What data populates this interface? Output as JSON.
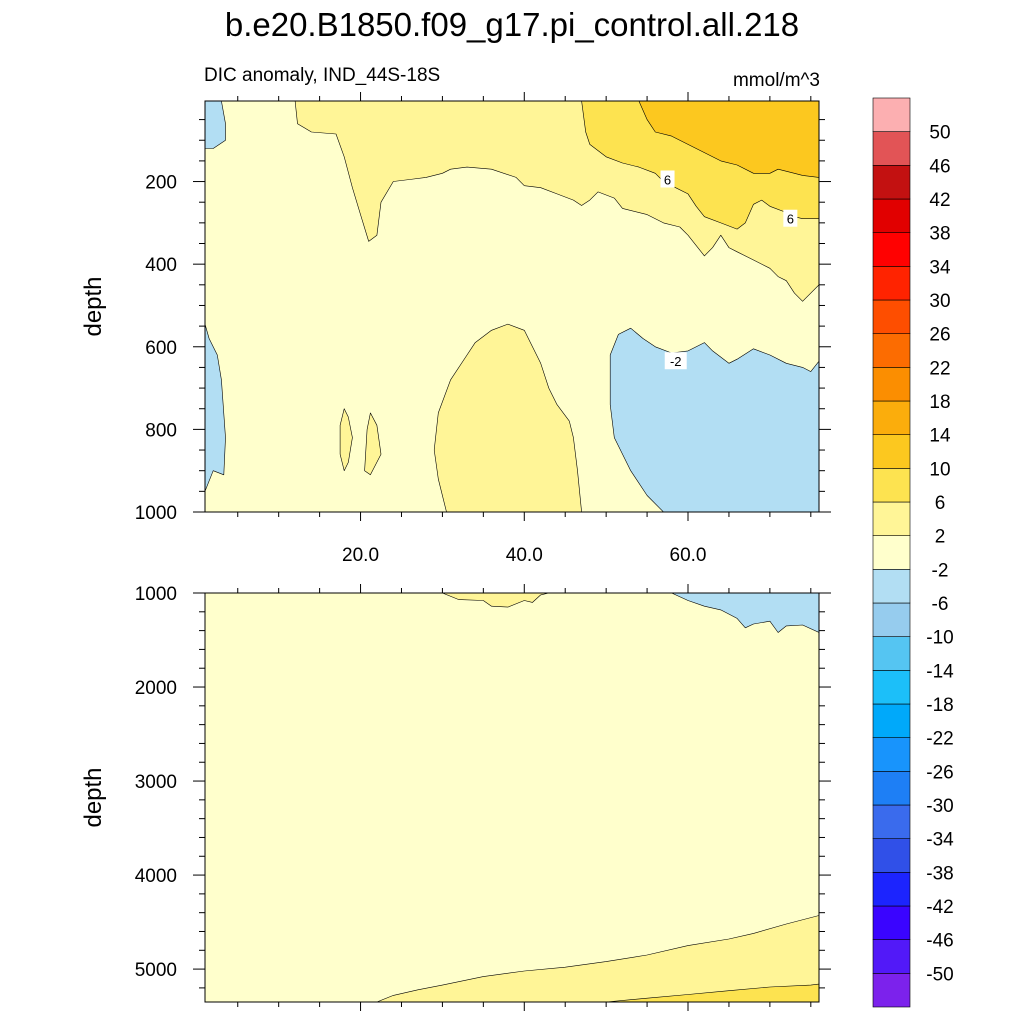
{
  "chart_data": [
    {
      "type": "heatmap",
      "title": "b.e20.B1850.f09_g17.pi_control.all.218",
      "subtitle_left": "DIC anomaly, IND_44S-18S",
      "subtitle_right": "mmol/m^3",
      "ylabel": "depth",
      "xlabel": "",
      "xlim": [
        1,
        76
      ],
      "ylim": [
        1000,
        5
      ],
      "y_reversed": true,
      "xticks": [
        {
          "value": 20,
          "label": "20.0"
        },
        {
          "value": 40,
          "label": "40.0"
        },
        {
          "value": 60,
          "label": "60.0"
        }
      ],
      "yticks": [
        {
          "value": 200,
          "label": "200"
        },
        {
          "value": 400,
          "label": "400"
        },
        {
          "value": 600,
          "label": "600"
        },
        {
          "value": 800,
          "label": "800"
        },
        {
          "value": 1000,
          "label": "1000"
        }
      ],
      "contour_labels": [
        {
          "text": "6",
          "x": 57.5,
          "y": 195
        },
        {
          "text": "6",
          "x": 72.5,
          "y": 290
        },
        {
          "text": "-2",
          "x": 58.5,
          "y": 635
        }
      ],
      "regions": [
        {
          "level": "2 to 6",
          "color": "#fff597",
          "points": [
            [
              12,
              5
            ],
            [
              12.3,
              60
            ],
            [
              14,
              80
            ],
            [
              17,
              85
            ],
            [
              18,
              140
            ],
            [
              19,
              215
            ],
            [
              20,
              280
            ],
            [
              21,
              345
            ],
            [
              22,
              330
            ],
            [
              22.5,
              250
            ],
            [
              24,
              200
            ],
            [
              26,
              195
            ],
            [
              28,
              190
            ],
            [
              30,
              180
            ],
            [
              31,
              170
            ],
            [
              33,
              165
            ],
            [
              36,
              170
            ],
            [
              39,
              190
            ],
            [
              40,
              210
            ],
            [
              42,
              215
            ],
            [
              44,
              230
            ],
            [
              46,
              245
            ],
            [
              47,
              258
            ],
            [
              48,
              245
            ],
            [
              49,
              225
            ],
            [
              51,
              240
            ],
            [
              52,
              265
            ],
            [
              55,
              280
            ],
            [
              57,
              300
            ],
            [
              59,
              310
            ],
            [
              60,
              330
            ],
            [
              61,
              355
            ],
            [
              62,
              380
            ],
            [
              63,
              360
            ],
            [
              64,
              330
            ],
            [
              65,
              360
            ],
            [
              66,
              370
            ],
            [
              68,
              390
            ],
            [
              70,
              410
            ],
            [
              71,
              430
            ],
            [
              72,
              440
            ],
            [
              73,
              470
            ],
            [
              74,
              490
            ],
            [
              75,
              470
            ],
            [
              76,
              450
            ],
            [
              76,
              5
            ]
          ]
        },
        {
          "level": "2 to 6",
          "color": "#fff597",
          "points": [
            [
              30.5,
              1000
            ],
            [
              29.5,
              920
            ],
            [
              29,
              850
            ],
            [
              29.5,
              760
            ],
            [
              31,
              680
            ],
            [
              33,
              620
            ],
            [
              34,
              590
            ],
            [
              36,
              560
            ],
            [
              38,
              545
            ],
            [
              40,
              560
            ],
            [
              41,
              600
            ],
            [
              42,
              640
            ],
            [
              43,
              700
            ],
            [
              44,
              740
            ],
            [
              45.5,
              780
            ],
            [
              46,
              820
            ],
            [
              46.5,
              900
            ],
            [
              47,
              1000
            ]
          ]
        },
        {
          "level": "2 to 6",
          "color": "#fff597",
          "points": [
            [
              17.5,
              790
            ],
            [
              18,
              750
            ],
            [
              18.5,
              770
            ],
            [
              19,
              820
            ],
            [
              18.5,
              880
            ],
            [
              18,
              900
            ],
            [
              17.5,
              860
            ]
          ]
        },
        {
          "level": "2 to 6",
          "color": "#fff597",
          "points": [
            [
              20.5,
              900
            ],
            [
              20.8,
              800
            ],
            [
              21.2,
              760
            ],
            [
              22,
              790
            ],
            [
              22.5,
              860
            ],
            [
              21.2,
              910
            ]
          ]
        },
        {
          "level": "6 to 10",
          "color": "#fde350",
          "points": [
            [
              47,
              5
            ],
            [
              47.5,
              80
            ],
            [
              48,
              110
            ],
            [
              50,
              140
            ],
            [
              52,
              155
            ],
            [
              54,
              165
            ],
            [
              56,
              180
            ],
            [
              57,
              200
            ],
            [
              58,
              210
            ],
            [
              60,
              230
            ],
            [
              61,
              260
            ],
            [
              62,
              285
            ],
            [
              64,
              300
            ],
            [
              66,
              315
            ],
            [
              67,
              300
            ],
            [
              68,
              255
            ],
            [
              69,
              245
            ],
            [
              70,
              260
            ],
            [
              72,
              275
            ],
            [
              73,
              285
            ],
            [
              74,
              290
            ],
            [
              76,
              290
            ],
            [
              76,
              5
            ]
          ]
        },
        {
          "level": "10 to 14",
          "color": "#fcc81f",
          "points": [
            [
              54,
              5
            ],
            [
              55,
              50
            ],
            [
              56,
              80
            ],
            [
              58,
              90
            ],
            [
              60,
              110
            ],
            [
              62,
              130
            ],
            [
              64,
              150
            ],
            [
              66,
              160
            ],
            [
              68,
              180
            ],
            [
              70,
              180
            ],
            [
              71,
              170
            ],
            [
              73,
              180
            ],
            [
              74,
              185
            ],
            [
              76,
              190
            ],
            [
              76,
              5
            ]
          ]
        },
        {
          "level": "-6 to -2",
          "color": "#b2def3",
          "points": [
            [
              1,
              5
            ],
            [
              3,
              5
            ],
            [
              3.5,
              60
            ],
            [
              3.5,
              100
            ],
            [
              2,
              120
            ],
            [
              1,
              120
            ]
          ]
        },
        {
          "level": "-6 to -2",
          "color": "#b2def3",
          "points": [
            [
              1,
              545
            ],
            [
              1.5,
              580
            ],
            [
              2.5,
              620
            ],
            [
              3,
              680
            ],
            [
              3.5,
              820
            ],
            [
              3.3,
              910
            ],
            [
              2,
              900
            ],
            [
              1,
              950
            ]
          ]
        },
        {
          "level": "-6 to -2",
          "color": "#b2def3",
          "points": [
            [
              57,
              1000
            ],
            [
              55,
              960
            ],
            [
              53,
              900
            ],
            [
              51,
              820
            ],
            [
              50.5,
              740
            ],
            [
              50.5,
              620
            ],
            [
              51.5,
              570
            ],
            [
              53,
              555
            ],
            [
              54.5,
              580
            ],
            [
              56,
              600
            ],
            [
              58,
              615
            ],
            [
              60,
              610
            ],
            [
              62,
              590
            ],
            [
              63,
              610
            ],
            [
              65,
              640
            ],
            [
              66,
              630
            ],
            [
              68,
              605
            ],
            [
              70,
              620
            ],
            [
              72,
              640
            ],
            [
              74,
              650
            ],
            [
              75,
              660
            ],
            [
              76,
              635
            ],
            [
              76,
              1000
            ]
          ]
        }
      ]
    },
    {
      "type": "heatmap",
      "ylabel": "depth",
      "xlim": [
        1,
        76
      ],
      "ylim": [
        5350,
        1000
      ],
      "y_reversed": true,
      "yticks": [
        {
          "value": 1000,
          "label": "1000"
        },
        {
          "value": 2000,
          "label": "2000"
        },
        {
          "value": 3000,
          "label": "3000"
        },
        {
          "value": 4000,
          "label": "4000"
        },
        {
          "value": 5000,
          "label": "5000"
        }
      ],
      "regions": [
        {
          "level": "2 to 6",
          "color": "#fff597",
          "points": [
            [
              30,
              1000
            ],
            [
              32,
              1070
            ],
            [
              35,
              1080
            ],
            [
              36,
              1140
            ],
            [
              38,
              1150
            ],
            [
              40,
              1080
            ],
            [
              41,
              1100
            ],
            [
              42,
              1020
            ],
            [
              43,
              1000
            ]
          ]
        },
        {
          "level": "2 to 6",
          "color": "#fff597",
          "points": [
            [
              22,
              5350
            ],
            [
              24,
              5280
            ],
            [
              27,
              5220
            ],
            [
              30,
              5170
            ],
            [
              35,
              5080
            ],
            [
              40,
              5020
            ],
            [
              45,
              4980
            ],
            [
              50,
              4920
            ],
            [
              55,
              4850
            ],
            [
              60,
              4750
            ],
            [
              65,
              4680
            ],
            [
              68,
              4620
            ],
            [
              72,
              4520
            ],
            [
              76,
              4430
            ],
            [
              76,
              5350
            ]
          ]
        },
        {
          "level": "6 to 10",
          "color": "#fde350",
          "points": [
            [
              50,
              5350
            ],
            [
              55,
              5310
            ],
            [
              60,
              5270
            ],
            [
              65,
              5230
            ],
            [
              70,
              5190
            ],
            [
              75,
              5170
            ],
            [
              76,
              5160
            ],
            [
              76,
              5350
            ]
          ]
        },
        {
          "level": "-6 to -2",
          "color": "#b2def3",
          "points": [
            [
              58,
              1000
            ],
            [
              60,
              1080
            ],
            [
              62,
              1140
            ],
            [
              64,
              1180
            ],
            [
              66,
              1270
            ],
            [
              67,
              1370
            ],
            [
              68,
              1330
            ],
            [
              70,
              1300
            ],
            [
              71,
              1420
            ],
            [
              72,
              1350
            ],
            [
              74,
              1340
            ],
            [
              76,
              1420
            ],
            [
              76,
              1000
            ]
          ]
        }
      ]
    }
  ],
  "colorbar": {
    "colors": [
      "#7c22ec",
      "#5219f8",
      "#3a04ff",
      "#1c24fe",
      "#3050e8",
      "#3a6bed",
      "#1e7ff5",
      "#1894fc",
      "#00a9fa",
      "#1cbff9",
      "#55c5f2",
      "#96ccee",
      "#b2def3",
      "#ffffcc",
      "#fff597",
      "#fde350",
      "#fcc81f",
      "#fbad0c",
      "#fb8e01",
      "#fc6c01",
      "#fe4e00",
      "#ff2300",
      "#ff0101",
      "#e10000",
      "#c31111",
      "#e25456",
      "#fcafb1"
    ],
    "labels": [
      "-50",
      "-46",
      "-42",
      "-38",
      "-34",
      "-30",
      "-26",
      "-22",
      "-18",
      "-14",
      "-10",
      "-6",
      "-2",
      "2",
      "6",
      "10",
      "14",
      "18",
      "22",
      "26",
      "30",
      "34",
      "38",
      "42",
      "46",
      "50"
    ]
  },
  "panel_bg_color": "#ffffcc"
}
